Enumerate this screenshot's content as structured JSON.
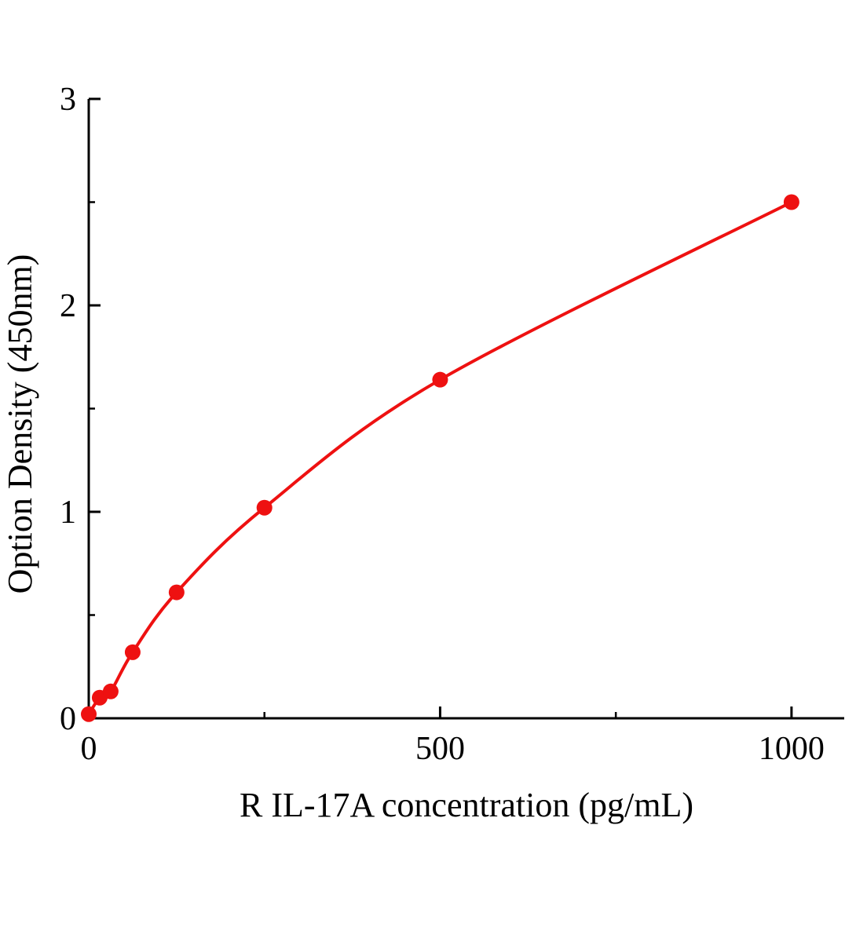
{
  "chart_data": {
    "type": "line",
    "title": "",
    "xlabel": "R IL-17A  concentration (pg/mL)",
    "ylabel": "Option Density (450nm)",
    "x": [
      0,
      15.6,
      31.2,
      62.5,
      125,
      250,
      500,
      1000
    ],
    "y": [
      0.02,
      0.1,
      0.13,
      0.32,
      0.61,
      1.02,
      1.64,
      2.5
    ],
    "xlim": [
      0,
      1075
    ],
    "ylim": [
      0,
      3
    ],
    "x_major_ticks": [
      0,
      500,
      1000
    ],
    "x_minor_ticks": [
      250,
      750
    ],
    "y_major_ticks": [
      0,
      1,
      2,
      3
    ],
    "y_minor_ticks": [
      0.5,
      1.5,
      2.5
    ],
    "grid": false,
    "legend": "none",
    "marker": "circle",
    "line_color": "#ee1111",
    "marker_color": "#ee1111",
    "axis_color": "#000000"
  }
}
